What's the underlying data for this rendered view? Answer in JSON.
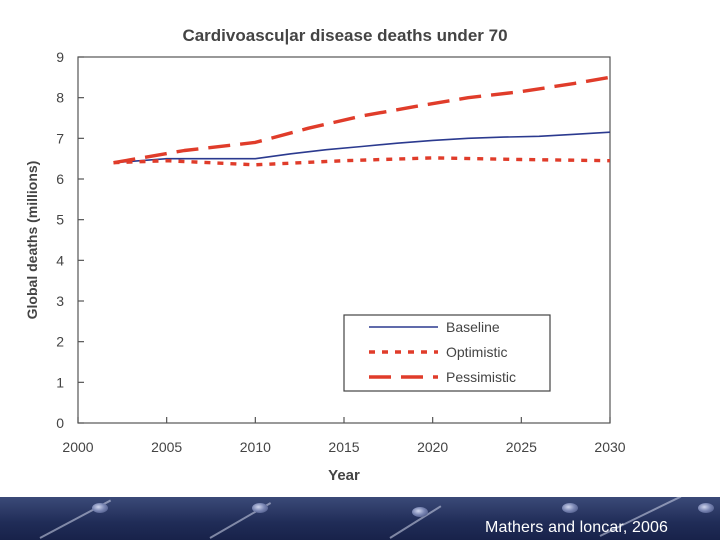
{
  "citation": "Mathers and loncar, 2006",
  "chart_data": {
    "type": "line",
    "title": "Cardivoascu|ar disease deaths under 70",
    "xlabel": "Year",
    "ylabel": "Global deaths (millions)",
    "xlim": [
      2000,
      2030
    ],
    "ylim": [
      0,
      9
    ],
    "xticks": [
      "2000",
      "2005",
      "2010",
      "2015",
      "2020",
      "2025",
      "2030"
    ],
    "yticks": [
      "0",
      "1",
      "2",
      "3",
      "4",
      "5",
      "6",
      "7",
      "8",
      "9"
    ],
    "grid": false,
    "legend_position": "bottom-right",
    "series": [
      {
        "name": "Baseline",
        "style": "solid",
        "color": "#2b3a8f",
        "x": [
          2002,
          2005,
          2010,
          2012,
          2014,
          2016,
          2018,
          2020,
          2022,
          2024,
          2026,
          2028,
          2030
        ],
        "y": [
          6.4,
          6.5,
          6.5,
          6.62,
          6.72,
          6.8,
          6.88,
          6.95,
          7.0,
          7.03,
          7.05,
          7.1,
          7.15
        ]
      },
      {
        "name": "Optimistic",
        "style": "dotted",
        "color": "#e03c2a",
        "x": [
          2002,
          2005,
          2010,
          2015,
          2020,
          2025,
          2030
        ],
        "y": [
          6.4,
          6.45,
          6.35,
          6.45,
          6.52,
          6.48,
          6.45
        ]
      },
      {
        "name": "Pessimistic",
        "style": "dashed",
        "color": "#e03c2a",
        "x": [
          2002,
          2006,
          2010,
          2013,
          2016,
          2019,
          2022,
          2025,
          2028,
          2030
        ],
        "y": [
          6.4,
          6.7,
          6.9,
          7.25,
          7.55,
          7.78,
          8.0,
          8.15,
          8.35,
          8.5
        ]
      }
    ]
  }
}
